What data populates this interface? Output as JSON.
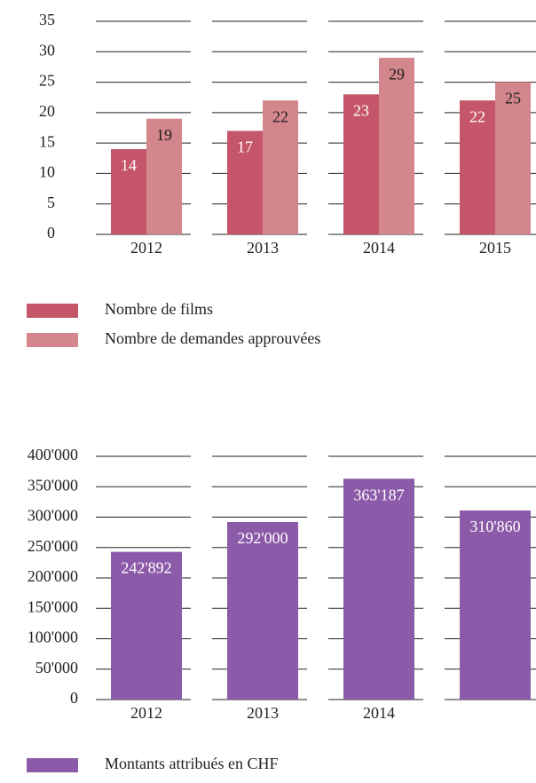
{
  "chart_data": [
    {
      "type": "bar",
      "categories": [
        "2012",
        "2013",
        "2014",
        "2015"
      ],
      "series": [
        {
          "name": "Nombre de films",
          "color": "#c5566a",
          "values": [
            14,
            17,
            23,
            22
          ]
        },
        {
          "name": "Nombre de demandes approuvées",
          "color": "#d3868c",
          "values": [
            19,
            22,
            29,
            25
          ]
        }
      ],
      "ylim": [
        0,
        35
      ],
      "yticks": [
        0,
        5,
        10,
        15,
        20,
        25,
        30,
        35
      ],
      "grid": true
    },
    {
      "type": "bar",
      "categories": [
        "2012",
        "2013",
        "2014",
        null
      ],
      "series": [
        {
          "name": "Montants attribués en CHF",
          "color": "#8b5aa8",
          "values": [
            242892,
            292000,
            363187,
            310860
          ],
          "value_labels": [
            "242'892",
            "292'000",
            "363'187",
            "310'860"
          ]
        }
      ],
      "ylim": [
        0,
        400000
      ],
      "yticks": [
        0,
        {
          "value": 50000,
          "label": "50'000"
        },
        {
          "value": 100000,
          "label": "100'000"
        },
        {
          "value": 150000,
          "label": "150'000"
        },
        {
          "value": 200000,
          "label": "200'000"
        },
        {
          "value": 250000,
          "label": "250'000"
        },
        {
          "value": 300000,
          "label": "300'000"
        },
        {
          "value": 350000,
          "label": "350'000"
        },
        {
          "value": 400000,
          "label": "400'000"
        }
      ],
      "grid": true
    }
  ]
}
